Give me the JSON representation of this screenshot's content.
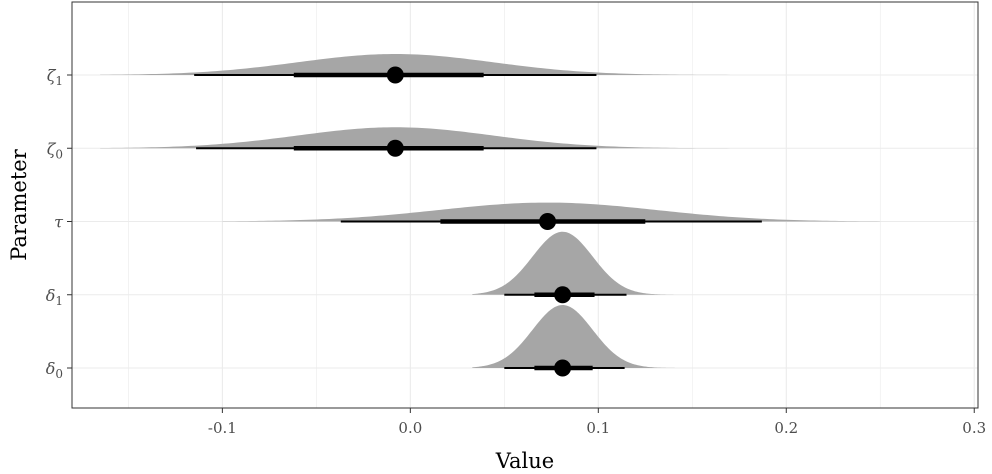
{
  "chart_data": {
    "type": "halfeye",
    "xlabel": "Value",
    "ylabel": "Parameter",
    "xlim": [
      -0.18,
      0.302
    ],
    "x_ticks": [
      -0.1,
      0.0,
      0.1,
      0.2,
      0.3
    ],
    "x_tick_labels": [
      "-0.1",
      "0.0",
      "0.1",
      "0.2",
      "0.3"
    ],
    "grid": true,
    "colors": {
      "density": "#a6a6a6",
      "interval": "#000000",
      "grid": "#ebebeb",
      "panel_border": "#333333"
    },
    "parameters": [
      {
        "symbol": "ζ",
        "sub": "1",
        "point": -0.008,
        "interval_66": [
          -0.062,
          0.039
        ],
        "interval_95": [
          -0.115,
          0.099
        ],
        "sd": 0.052,
        "min": -0.165,
        "max": 0.2
      },
      {
        "symbol": "ζ",
        "sub": "0",
        "point": -0.008,
        "interval_66": [
          -0.062,
          0.039
        ],
        "interval_95": [
          -0.114,
          0.099
        ],
        "sd": 0.052,
        "min": -0.165,
        "max": 0.2
      },
      {
        "symbol": "τ",
        "sub": "",
        "point": 0.073,
        "interval_66": [
          0.016,
          0.125
        ],
        "interval_95": [
          -0.037,
          0.187
        ],
        "sd": 0.058,
        "min": -0.1,
        "max": 0.25
      },
      {
        "symbol": "δ",
        "sub": "1",
        "point": 0.081,
        "interval_66": [
          0.066,
          0.098
        ],
        "interval_95": [
          0.05,
          0.115
        ],
        "sd": 0.016,
        "min": 0.033,
        "max": 0.146
      },
      {
        "symbol": "δ",
        "sub": "0",
        "point": 0.081,
        "interval_66": [
          0.066,
          0.097
        ],
        "interval_95": [
          0.05,
          0.114
        ],
        "sd": 0.016,
        "min": 0.033,
        "max": 0.141
      }
    ]
  }
}
